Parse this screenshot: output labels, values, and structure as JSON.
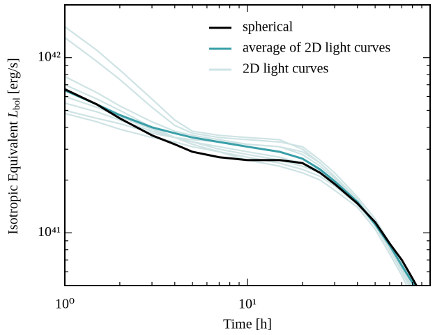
{
  "chart_data": {
    "type": "line",
    "x_label": "Time [h]",
    "y_label": "Isotropic Equivalent",
    "y_label_symbol": "L",
    "y_label_subscript": "bol",
    "y_label_unit": "[erg/s]",
    "x_log": true,
    "y_log": true,
    "xlim": [
      1,
      100
    ],
    "ylim": [
      5e+40,
      2e+42
    ],
    "xticks": [
      {
        "value": 1,
        "label": "10⁰"
      },
      {
        "value": 10,
        "label": "10¹"
      }
    ],
    "yticks": [
      {
        "value": 1e+41,
        "label": "10⁴¹"
      },
      {
        "value": 1e+42,
        "label": "10⁴²"
      }
    ],
    "xminorticks": [
      2,
      3,
      4,
      5,
      6,
      7,
      8,
      9,
      20,
      30,
      40,
      50,
      60,
      70,
      80,
      90
    ],
    "yminorticks": [
      6e+40,
      7e+40,
      8e+40,
      9e+40,
      2e+41,
      3e+41,
      4e+41,
      5e+41,
      6e+41,
      7e+41,
      8e+41,
      9e+41,
      2e+42
    ],
    "legend": "upper center",
    "x": [
      1,
      1.5,
      2,
      3,
      4,
      5,
      7,
      10,
      15,
      20,
      25,
      30,
      40,
      50,
      60,
      70,
      80,
      90
    ],
    "series": [
      {
        "name": "spherical",
        "color": "#000000",
        "values": [
          6.6e+41,
          5.4e+41,
          4.5e+41,
          3.6e+41,
          3.2e+41,
          2.9e+41,
          2.7e+41,
          2.6e+41,
          2.6e+41,
          2.5e+41,
          2.2e+41,
          1.9e+41,
          1.47e+41,
          1.15e+41,
          8.7e+40,
          7e+40,
          5.5e+40,
          4.4e+40
        ]
      },
      {
        "name": "average of 2D light curves",
        "color": "#3a9fa8",
        "values": [
          6.5e+41,
          5.4e+41,
          4.7e+41,
          4e+41,
          3.7e+41,
          3.5e+41,
          3.3e+41,
          3.1e+41,
          2.9e+41,
          2.65e+41,
          2.3e+41,
          1.97e+41,
          1.5e+41,
          1.12e+41,
          8.5e+40,
          6.5e+40,
          5.2e+40,
          4.2e+40
        ]
      },
      {
        "name": "2D light curves",
        "color": "#cfe3e4",
        "curves": [
          [
            1.5e+42,
            1.1e+42,
            8.5e+41,
            5.8e+41,
            4.4e+41,
            3.8e+41,
            3.6e+41,
            3.5e+41,
            3.4e+41,
            3e+41,
            2.5e+41,
            2.1e+41,
            1.55e+41,
            1.15e+41,
            8.6e+40,
            6.6e+40,
            5.1e+40,
            4e+40
          ],
          [
            1.3e+42,
            9.5e+41,
            7.5e+41,
            5.2e+41,
            4.1e+41,
            3.7e+41,
            3.5e+41,
            3.4e+41,
            3.3e+41,
            3.1e+41,
            2.6e+41,
            2.2e+41,
            1.6e+41,
            1.2e+41,
            8.8e+40,
            6.8e+40,
            5.3e+40,
            4.2e+40
          ],
          [
            7.8e+41,
            6.3e+41,
            5.3e+41,
            4.3e+41,
            3.8e+41,
            3.6e+41,
            3.4e+41,
            3.2e+41,
            3.1e+41,
            2.9e+41,
            2.5e+41,
            2.1e+41,
            1.55e+41,
            1.1e+41,
            8e+40,
            6e+40,
            4.6e+40,
            3.6e+40
          ],
          [
            7e+41,
            5.8e+41,
            5e+41,
            4e+41,
            3.5e+41,
            3.2e+41,
            2.9e+41,
            2.7e+41,
            2.5e+41,
            2.3e+41,
            2.1e+41,
            1.85e+41,
            1.45e+41,
            1.1e+41,
            8.3e+40,
            6.4e+40,
            5e+40,
            4e+40
          ],
          [
            6e+41,
            5.2e+41,
            4.6e+41,
            3.9e+41,
            3.5e+41,
            3.3e+41,
            3.1e+41,
            2.9e+41,
            2.7e+41,
            2.5e+41,
            2.25e+41,
            1.95e+41,
            1.5e+41,
            1.1e+41,
            8e+40,
            6e+40,
            4.6e+40,
            3.6e+40
          ],
          [
            5e+41,
            4.5e+41,
            4.2e+41,
            3.7e+41,
            3.5e+41,
            3.4e+41,
            3.3e+41,
            3.2e+41,
            3.1e+41,
            2.8e+41,
            2.4e+41,
            2.05e+41,
            1.5e+41,
            1.1e+41,
            8.2e+40,
            6.2e+40,
            4.8e+40,
            3.8e+40
          ],
          [
            4.8e+41,
            4.3e+41,
            3.9e+41,
            3.5e+41,
            3.3e+41,
            3.1e+41,
            2.9e+41,
            2.6e+41,
            2.4e+41,
            2.2e+41,
            2e+41,
            1.75e+41,
            1.4e+41,
            1.05e+41,
            7.6e+40,
            5.7e+40,
            4.3e+40,
            3.3e+40
          ],
          [
            5.5e+41,
            4.9e+41,
            4.4e+41,
            3.8e+41,
            3.5e+41,
            3.3e+41,
            3e+41,
            2.8e+41,
            2.6e+41,
            2.4e+41,
            2.2e+41,
            1.9e+41,
            1.48e+41,
            1.12e+41,
            8.5e+40,
            6.5e+40,
            5.1e+40,
            4.1e+40
          ]
        ]
      }
    ]
  }
}
